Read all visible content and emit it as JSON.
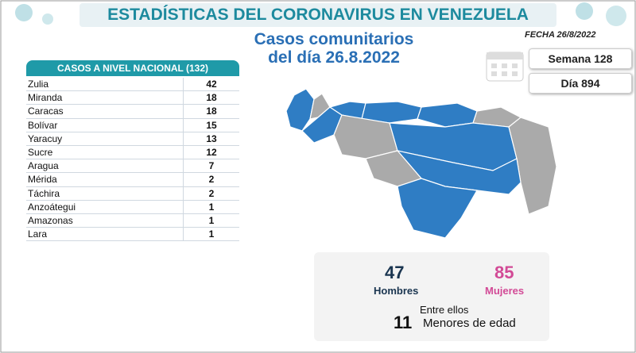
{
  "header": {
    "title": "ESTADÍSTICAS DEL CORONAVIRUS EN VENEZUELA",
    "subtitle_line1": "Casos comunitarios",
    "subtitle_line2": "del día 26.8.2022",
    "date": "FECHA 26/8/2022"
  },
  "counters": {
    "week": "Semana 128",
    "day": "Día 894"
  },
  "table": {
    "header": "CASOS A NIVEL NACIONAL  (132)",
    "rows": [
      [
        "Zulia",
        42
      ],
      [
        "Miranda",
        18
      ],
      [
        "Caracas",
        18
      ],
      [
        "Bolívar",
        15
      ],
      [
        "Yaracuy",
        13
      ],
      [
        "Sucre",
        12
      ],
      [
        "Aragua",
        7
      ],
      [
        "Mérida",
        2
      ],
      [
        "Táchira",
        2
      ],
      [
        "Anzoátegui",
        1
      ],
      [
        "Amazonas",
        1
      ],
      [
        "Lara",
        1
      ]
    ]
  },
  "demographics": {
    "men": 47,
    "men_label": "Hombres",
    "women": 85,
    "women_label": "Mujeres",
    "among_label": "Entre ellos",
    "minors": 11,
    "minors_label": "Menores de edad"
  }
}
